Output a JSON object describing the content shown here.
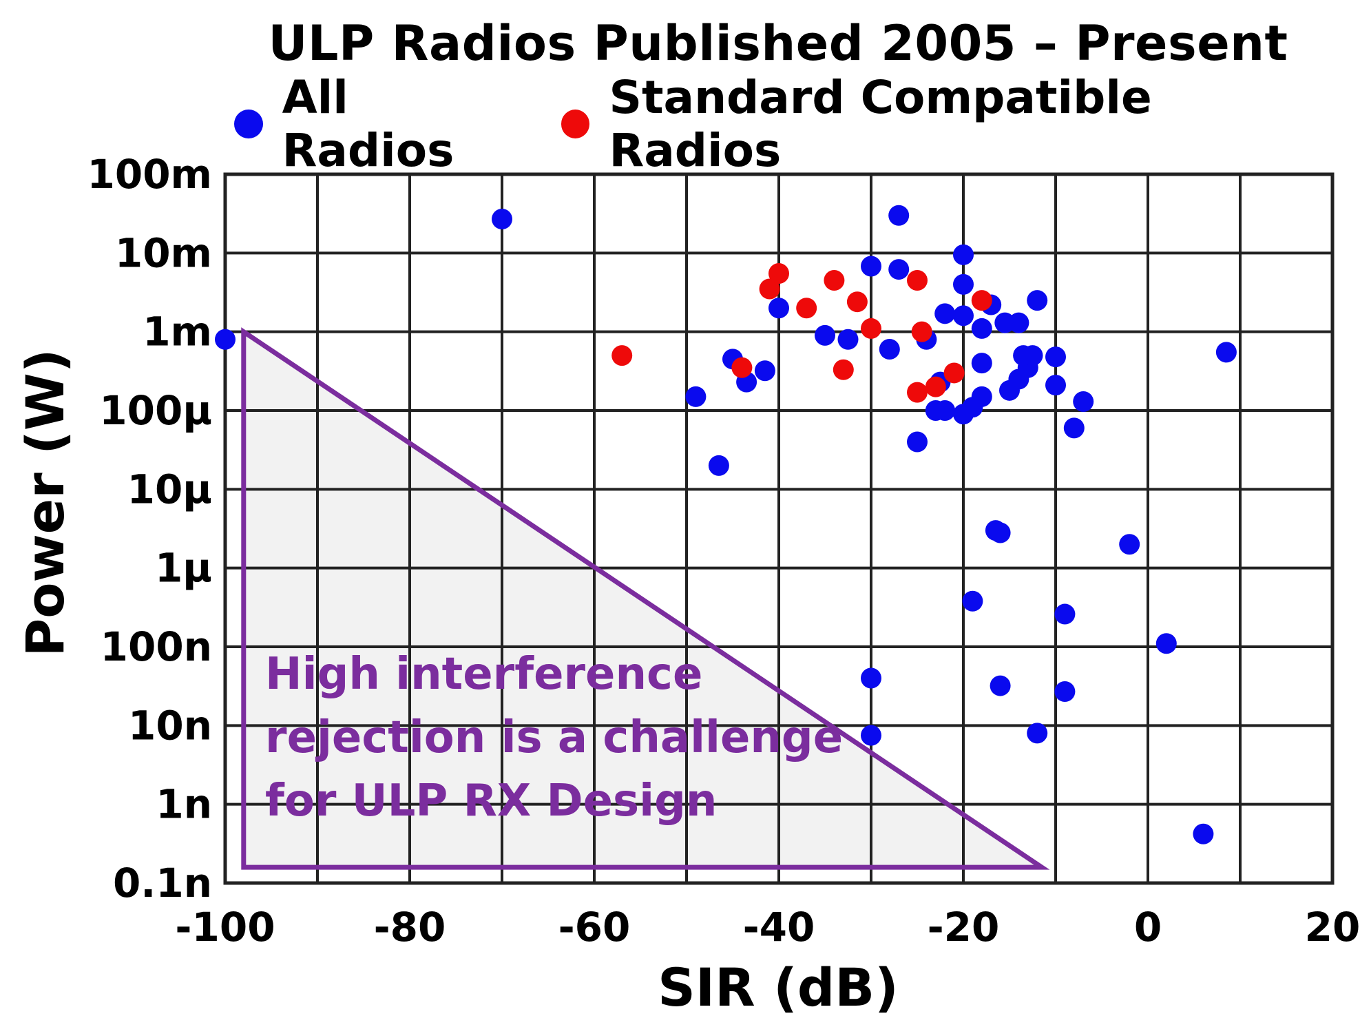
{
  "chart_data": {
    "type": "scatter",
    "title": "ULP Radios Published 2005 – Present",
    "xlabel": "SIR (dB)",
    "ylabel": "Power (W)",
    "xlim": [
      -100,
      20
    ],
    "ylim_log10": [
      -10,
      -1
    ],
    "x_ticks": [
      -100,
      -80,
      -60,
      -40,
      -20,
      0,
      20
    ],
    "x_tick_labels": [
      "-100",
      "-80",
      "-60",
      "-40",
      "-20",
      "0",
      "20"
    ],
    "y_tick_exponents": [
      -1,
      -2,
      -3,
      -4,
      -5,
      -6,
      -7,
      -8,
      -9,
      -10
    ],
    "y_tick_labels": [
      "100m",
      "10m",
      "1m",
      "100µ",
      "10µ",
      "1µ",
      "100n",
      "10n",
      "1n",
      "0.1n"
    ],
    "x_grid_step": 10,
    "grid": true,
    "legend_position": "top",
    "series": [
      {
        "name": "All Radios",
        "color": "#0a0aee",
        "points": [
          [
            -100,
            0.0008
          ],
          [
            -70,
            0.027
          ],
          [
            -49,
            0.00015
          ],
          [
            -46.5,
            2e-05
          ],
          [
            -45,
            0.00045
          ],
          [
            -43.5,
            0.00023
          ],
          [
            -41.5,
            0.00032
          ],
          [
            -40,
            0.002
          ],
          [
            -35,
            0.0009
          ],
          [
            -32.5,
            0.0008
          ],
          [
            -30,
            0.0068
          ],
          [
            -28,
            0.0006
          ],
          [
            -27,
            0.03
          ],
          [
            -27,
            0.0062
          ],
          [
            -25,
            4e-05
          ],
          [
            -24,
            0.0008
          ],
          [
            -23,
            0.0001
          ],
          [
            -22.5,
            0.00023
          ],
          [
            -22,
            0.0017
          ],
          [
            -22,
            0.0001
          ],
          [
            -20,
            0.0095
          ],
          [
            -20,
            0.004
          ],
          [
            -20,
            0.0016
          ],
          [
            -20,
            9e-05
          ],
          [
            -19,
            0.00011
          ],
          [
            -18,
            0.0011
          ],
          [
            -18,
            0.0004
          ],
          [
            -18,
            0.00015
          ],
          [
            -17,
            0.0022
          ],
          [
            -15.5,
            0.0013
          ],
          [
            -15,
            0.00018
          ],
          [
            -14,
            0.00025
          ],
          [
            -14,
            0.0013
          ],
          [
            -13.5,
            0.0005
          ],
          [
            -13,
            0.00035
          ],
          [
            -12.5,
            0.0005
          ],
          [
            -12,
            0.0025
          ],
          [
            -10,
            0.00048
          ],
          [
            -10,
            0.00021
          ],
          [
            -8,
            6e-05
          ],
          [
            -7,
            0.00013
          ],
          [
            8.5,
            0.00055
          ],
          [
            -16.5,
            3e-06
          ],
          [
            -16,
            2.8e-06
          ],
          [
            -2,
            2e-06
          ],
          [
            -19,
            3.8e-07
          ],
          [
            -9,
            2.6e-07
          ],
          [
            2,
            1.1e-07
          ],
          [
            -30,
            4e-08
          ],
          [
            -16,
            3.2e-08
          ],
          [
            -9,
            2.7e-08
          ],
          [
            -30,
            7.5e-09
          ],
          [
            -12,
            8e-09
          ],
          [
            6,
            4.2e-10
          ]
        ]
      },
      {
        "name": "Standard Compatible Radios",
        "color": "#ee0a0a",
        "points": [
          [
            -57,
            0.0005
          ],
          [
            -44,
            0.00035
          ],
          [
            -41,
            0.0035
          ],
          [
            -40,
            0.0055
          ],
          [
            -37,
            0.002
          ],
          [
            -34,
            0.0045
          ],
          [
            -33,
            0.00033
          ],
          [
            -31.5,
            0.0024
          ],
          [
            -30,
            0.0011
          ],
          [
            -25,
            0.0045
          ],
          [
            -24.5,
            0.001
          ],
          [
            -25,
            0.00017
          ],
          [
            -23,
            0.0002
          ],
          [
            -21,
            0.0003
          ],
          [
            -18,
            0.0025
          ]
        ]
      }
    ],
    "annotation": {
      "lines": [
        "High interference",
        "rejection is a challenge",
        "for ULP RX Design"
      ],
      "color": "#7b2d9e",
      "shape": "triangle",
      "fill": "#f2f2f2"
    }
  }
}
